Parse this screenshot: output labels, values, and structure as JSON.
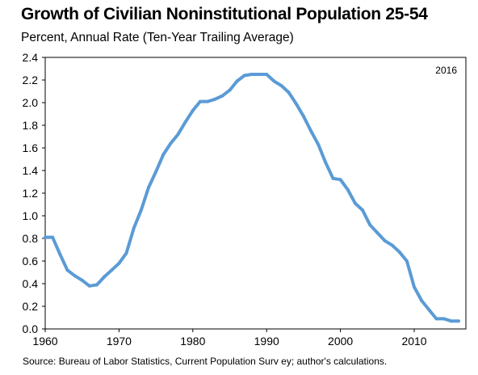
{
  "chart_data": {
    "type": "line",
    "title": "Growth of Civilian Noninstitutional Population 25-54",
    "subtitle": "Percent, Annual Rate (Ten-Year Trailing Average)",
    "annotation": "2016",
    "source": "Source: Bureau of Labor Statistics, Current Population Surv ey; author's calculations.",
    "xlim": [
      1960,
      2017
    ],
    "ylim": [
      0,
      2.4
    ],
    "x_ticks": [
      1960,
      1970,
      1980,
      1990,
      2000,
      2010
    ],
    "y_ticks": [
      "0.0",
      "0.2",
      "0.4",
      "0.6",
      "0.8",
      "1.0",
      "1.2",
      "1.4",
      "1.6",
      "1.8",
      "2.0",
      "2.2",
      "2.4"
    ],
    "grid": false,
    "line_color": "#5b9bd5",
    "series": [
      {
        "x": [
          1960,
          1961,
          1962,
          1963,
          1964,
          1965,
          1966,
          1967,
          1968,
          1969,
          1970,
          1971,
          1972,
          1973,
          1974,
          1975,
          1976,
          1977,
          1978,
          1979,
          1980,
          1981,
          1982,
          1983,
          1984,
          1985,
          1986,
          1987,
          1988,
          1989,
          1990,
          1991,
          1992,
          1993,
          1994,
          1995,
          1996,
          1997,
          1998,
          1999,
          2000,
          2001,
          2002,
          2003,
          2004,
          2005,
          2006,
          2007,
          2008,
          2009,
          2010,
          2011,
          2012,
          2013,
          2014,
          2015,
          2016
        ],
        "y": [
          0.81,
          0.81,
          0.66,
          0.52,
          0.47,
          0.43,
          0.38,
          0.39,
          0.46,
          0.52,
          0.58,
          0.67,
          0.89,
          1.05,
          1.25,
          1.39,
          1.54,
          1.64,
          1.72,
          1.83,
          1.93,
          2.01,
          2.01,
          2.03,
          2.06,
          2.11,
          2.19,
          2.24,
          2.25,
          2.25,
          2.25,
          2.19,
          2.15,
          2.09,
          1.99,
          1.88,
          1.75,
          1.63,
          1.47,
          1.33,
          1.32,
          1.23,
          1.11,
          1.05,
          0.92,
          0.85,
          0.78,
          0.74,
          0.68,
          0.6,
          0.37,
          0.25,
          0.17,
          0.09,
          0.09,
          0.07,
          0.07
        ]
      }
    ]
  }
}
